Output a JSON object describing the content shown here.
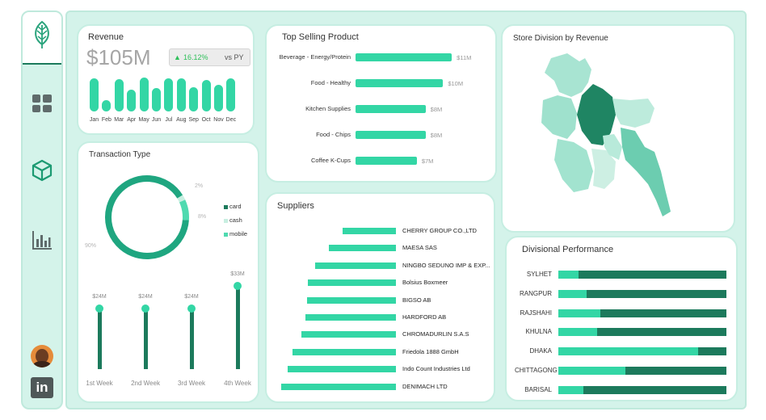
{
  "colors": {
    "accent": "#33d6a5",
    "dark": "#1c7a5c",
    "panel": "#d4f3ea",
    "positive": "#2fc05a"
  },
  "sidebar": {
    "logo_icon": "leaf-icon",
    "items": [
      {
        "icon": "dashboard-icon"
      },
      {
        "icon": "package-icon"
      },
      {
        "icon": "bar-chart-icon"
      }
    ],
    "avatar": "avatar",
    "linkedin_label": "in"
  },
  "revenue": {
    "title": "Revenue",
    "value": "$105M",
    "change": "16.12%",
    "change_direction": "up",
    "compare_label": "vs PY",
    "chart_data": {
      "type": "bar",
      "categories": [
        "Jan",
        "Feb",
        "Mar",
        "Apr",
        "May",
        "Jun",
        "Jul",
        "Aug",
        "Sep",
        "Oct",
        "Nov",
        "Dec"
      ],
      "values": [
        9.3,
        3.1,
        9.0,
        6.2,
        9.6,
        6.5,
        9.4,
        9.3,
        6.9,
        8.8,
        7.4,
        9.3
      ]
    }
  },
  "top_selling": {
    "title": "Top Selling Product",
    "chart_data": {
      "type": "bar",
      "orientation": "horizontal",
      "categories": [
        "Beverage - Energy/Protein",
        "Food - Healthy",
        "Kitchen Supplies",
        "Food - Chips",
        "Coffee K-Cups"
      ],
      "values": [
        11,
        10,
        8,
        8,
        7
      ],
      "value_labels": [
        "$11M",
        "$10M",
        "$8M",
        "$8M",
        "$7M"
      ],
      "xlim": [
        0,
        12
      ]
    }
  },
  "store_division": {
    "title": "Store Division by Revenue"
  },
  "transaction": {
    "title": "Transaction Type",
    "chart_data": {
      "type": "pie",
      "donut": true,
      "labels": [
        "card",
        "cash",
        "mobile"
      ],
      "values": [
        90,
        2,
        8
      ],
      "value_labels": [
        "90%",
        "2%",
        "8%"
      ],
      "colors": [
        "#1fa680",
        "#c8efe1",
        "#4fdab0"
      ]
    }
  },
  "weekly": {
    "chart_data": {
      "type": "bar",
      "style": "lollipop",
      "categories": [
        "1st Week",
        "2nd Week",
        "3rd Week",
        "4th Week"
      ],
      "values": [
        24,
        24,
        24,
        33
      ],
      "value_labels": [
        "$24M",
        "$24M",
        "$24M",
        "$33M"
      ],
      "ylim": [
        0,
        36
      ]
    }
  },
  "suppliers": {
    "title": "Suppliers",
    "chart_data": {
      "type": "bar",
      "orientation": "horizontal",
      "categories": [
        "CHERRY GROUP CO.,LTD",
        "MAESA SAS",
        "NINGBO SEDUNO IMP & EXP...",
        "Bolsius Boxmeer",
        "BIGSO AB",
        "HARDFORD AB",
        "CHROMADURLIN S.A.S",
        "Friedola 1888 GmbH",
        "Indo Count Industries Ltd",
        "DENIMACH LTD"
      ],
      "values": [
        66,
        83,
        100,
        109,
        110,
        112,
        117,
        128,
        134,
        142
      ]
    }
  },
  "divisional": {
    "title": "Divisional Performance",
    "chart_data": {
      "type": "bar",
      "orientation": "horizontal",
      "stacked": true,
      "categories": [
        "SYLHET",
        "RANGPUR",
        "RAJSHAHI",
        "KHULNA",
        "DHAKA",
        "CHITTAGONG",
        "BARISAL"
      ],
      "series": [
        {
          "values": [
            0.12,
            0.17,
            0.25,
            0.23,
            0.83,
            0.4,
            0.15
          ]
        },
        {
          "values": [
            0.88,
            0.83,
            0.75,
            0.77,
            0.17,
            0.6,
            0.85
          ]
        }
      ],
      "xlim": [
        0,
        1
      ]
    }
  }
}
